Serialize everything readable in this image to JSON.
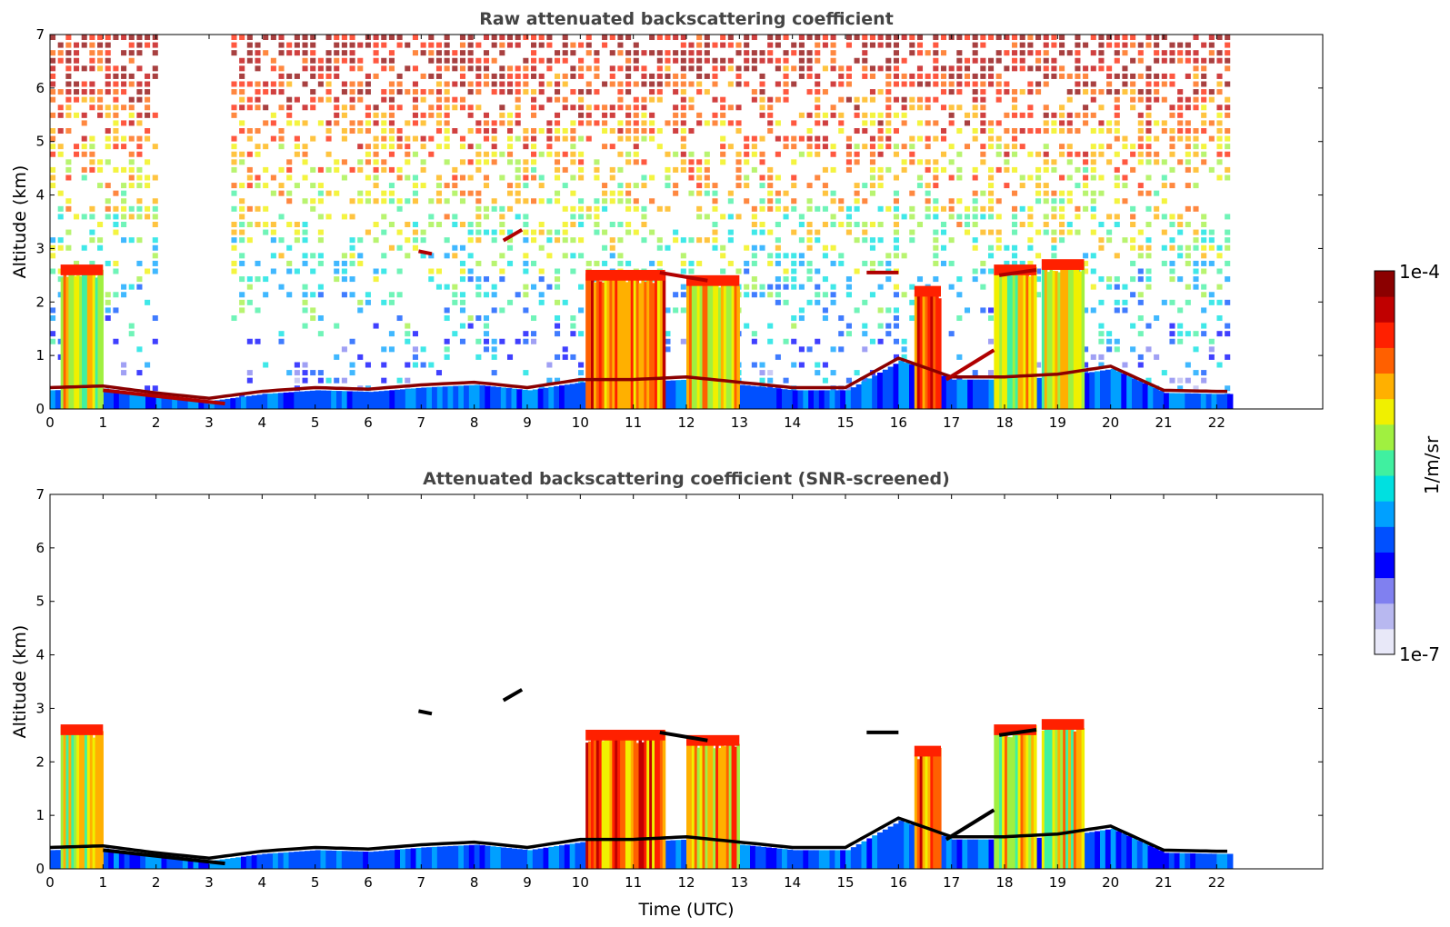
{
  "chart_data": [
    {
      "type": "heatmap",
      "title": "Raw attenuated backscattering coefficient",
      "xlabel": "",
      "ylabel": "Altitude (km)",
      "xlim": [
        0,
        24
      ],
      "ylim": [
        0,
        7
      ],
      "x_ticks": [
        "0",
        "1",
        "2",
        "3",
        "4",
        "5",
        "6",
        "7",
        "8",
        "9",
        "10",
        "11",
        "12",
        "13",
        "14",
        "15",
        "16",
        "17",
        "18",
        "19",
        "20",
        "21",
        "22"
      ],
      "y_ticks": [
        "0",
        "1",
        "2",
        "3",
        "4",
        "5",
        "6",
        "7"
      ],
      "data_end_time": 22.3,
      "blank_gaps": [
        [
          1.65,
          1.72
        ],
        [
          1.95,
          3.4
        ],
        [
          5.25,
          5.35
        ]
      ],
      "cloud_blocks": [
        {
          "t0": 0.2,
          "t1": 1.0,
          "top": 2.7,
          "level": 0.62
        },
        {
          "t0": 10.1,
          "t1": 11.6,
          "top": 2.6,
          "level": 0.78
        },
        {
          "t0": 12.0,
          "t1": 13.0,
          "top": 2.5,
          "level": 0.68
        },
        {
          "t0": 16.3,
          "t1": 16.8,
          "top": 2.3,
          "level": 0.78
        },
        {
          "t0": 17.8,
          "t1": 18.6,
          "top": 2.7,
          "level": 0.64
        },
        {
          "t0": 18.7,
          "t1": 19.5,
          "top": 2.8,
          "level": 0.62
        }
      ],
      "boundary_layer": [
        [
          0,
          0.35
        ],
        [
          1,
          0.38
        ],
        [
          2,
          0.25
        ],
        [
          3,
          0.15
        ],
        [
          4,
          0.28
        ],
        [
          5,
          0.35
        ],
        [
          6,
          0.32
        ],
        [
          7,
          0.4
        ],
        [
          8,
          0.45
        ],
        [
          9,
          0.35
        ],
        [
          10,
          0.5
        ],
        [
          11,
          0.5
        ],
        [
          12,
          0.55
        ],
        [
          13,
          0.45
        ],
        [
          14,
          0.35
        ],
        [
          15,
          0.35
        ],
        [
          16,
          0.9
        ],
        [
          17,
          0.55
        ],
        [
          18,
          0.55
        ],
        [
          19,
          0.6
        ],
        [
          20,
          0.75
        ],
        [
          21,
          0.3
        ],
        [
          22,
          0.28
        ]
      ],
      "thin_layers": [
        {
          "t0": 1.0,
          "t1": 3.3,
          "alt0": 0.35,
          "alt1": 0.1
        },
        {
          "t0": 6.95,
          "t1": 7.2,
          "alt0": 2.95,
          "alt1": 2.9
        },
        {
          "t0": 8.55,
          "t1": 8.9,
          "alt0": 3.15,
          "alt1": 3.35
        },
        {
          "t0": 11.5,
          "t1": 12.4,
          "alt0": 2.55,
          "alt1": 2.4
        },
        {
          "t0": 15.4,
          "t1": 16.0,
          "alt0": 2.55,
          "alt1": 2.55
        },
        {
          "t0": 16.9,
          "t1": 17.8,
          "alt0": 0.55,
          "alt1": 1.1
        },
        {
          "t0": 17.9,
          "t1": 18.6,
          "alt0": 2.5,
          "alt1": 2.6
        }
      ],
      "noise": true
    },
    {
      "type": "heatmap",
      "title": "Attenuated backscattering coefficient (SNR-screened)",
      "xlabel": "Time (UTC)",
      "ylabel": "Altitude (km)",
      "xlim": [
        0,
        24
      ],
      "ylim": [
        0,
        7
      ],
      "x_ticks": [
        "0",
        "1",
        "2",
        "3",
        "4",
        "5",
        "6",
        "7",
        "8",
        "9",
        "10",
        "11",
        "12",
        "13",
        "14",
        "15",
        "16",
        "17",
        "18",
        "19",
        "20",
        "21",
        "22"
      ],
      "y_ticks": [
        "0",
        "1",
        "2",
        "3",
        "4",
        "5",
        "6",
        "7"
      ],
      "data_end_time": 22.3,
      "noise": false
    }
  ],
  "colorbar": {
    "label": "1/m/sr",
    "max_label": "1e-4",
    "min_label": "1e-7",
    "colors": [
      "#e8e8f8",
      "#b8b8f0",
      "#8080f0",
      "#0000ff",
      "#0050ff",
      "#00a0ff",
      "#00e0e0",
      "#40f0a0",
      "#a0f040",
      "#f0f000",
      "#ffb000",
      "#ff6000",
      "#ff2000",
      "#c00000",
      "#8b0000"
    ]
  }
}
